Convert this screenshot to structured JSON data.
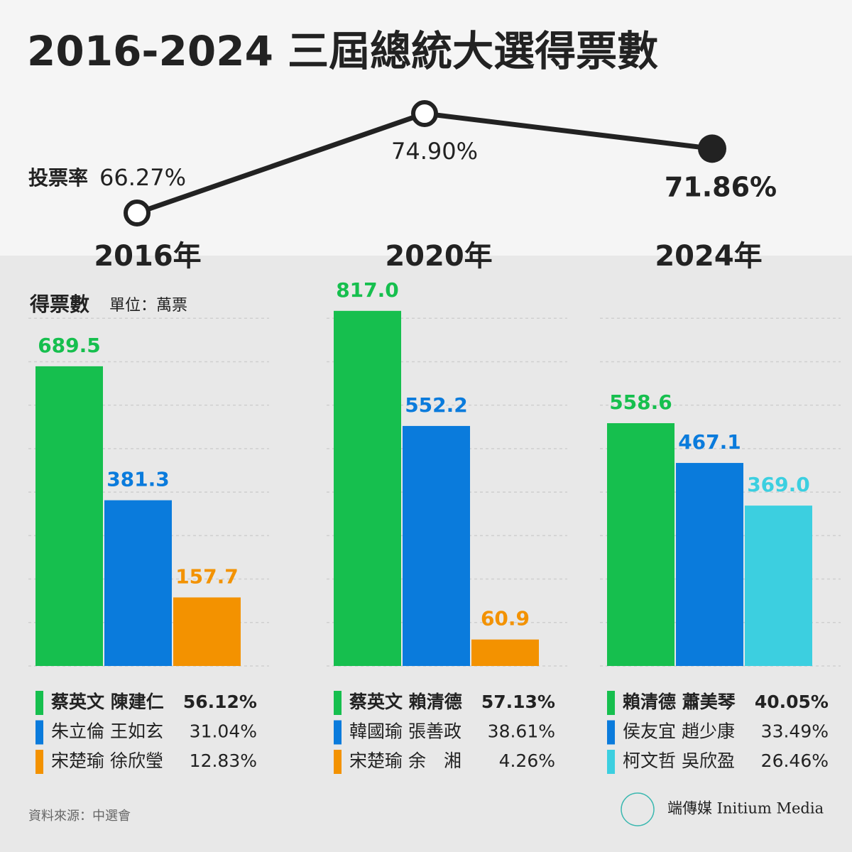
{
  "title": "2016-2024 三屆總統大選得票數",
  "source": "資料來源：中選會",
  "brand": "端傳媒 Initium Media",
  "chart_data": [
    {
      "type": "line",
      "label": "投票率",
      "categories": [
        "2016年",
        "2020年",
        "2024年"
      ],
      "values": [
        66.27,
        74.9,
        71.86
      ],
      "value_labels": [
        "66.27%",
        "74.90%",
        "71.86%"
      ],
      "color": "#222222"
    },
    {
      "type": "bar",
      "title": "得票數",
      "subtitle": "單位：萬票",
      "categories": [
        "蔡英文 陳建仁",
        "朱立倫 王如玄",
        "宋楚瑜 徐欣瑩"
      ],
      "values": [
        689.5,
        381.3,
        157.7
      ],
      "value_labels": [
        "689.5",
        "381.3",
        "157.7"
      ],
      "shares": [
        "56.12%",
        "31.04%",
        "12.83%"
      ],
      "colors": [
        "#16bf4e",
        "#0a7bdc",
        "#f39200"
      ],
      "ylim": [
        0,
        820
      ],
      "yticks": [
        0,
        100,
        200,
        300,
        400,
        500,
        600,
        700,
        800
      ],
      "grid": true
    },
    {
      "type": "bar",
      "categories": [
        "蔡英文 賴清德",
        "韓國瑜 張善政",
        "宋楚瑜 余　湘"
      ],
      "values": [
        817.0,
        552.2,
        60.9
      ],
      "value_labels": [
        "817.0",
        "552.2",
        "60.9"
      ],
      "shares": [
        "57.13%",
        "38.61%",
        "4.26%"
      ],
      "colors": [
        "#16bf4e",
        "#0a7bdc",
        "#f39200"
      ],
      "ylim": [
        0,
        820
      ],
      "yticks": [
        0,
        100,
        200,
        300,
        400,
        500,
        600,
        700,
        800
      ],
      "grid": true
    },
    {
      "type": "bar",
      "categories": [
        "賴清德 蕭美琴",
        "侯友宜 趙少康",
        "柯文哲 吳欣盈"
      ],
      "values": [
        558.6,
        467.1,
        369.0
      ],
      "value_labels": [
        "558.6",
        "467.1",
        "369.0"
      ],
      "shares": [
        "40.05%",
        "33.49%",
        "26.46%"
      ],
      "colors": [
        "#16bf4e",
        "#0a7bdc",
        "#3ccfe0"
      ],
      "ylim": [
        0,
        820
      ],
      "yticks": [
        0,
        100,
        200,
        300,
        400,
        500,
        600,
        700,
        800
      ],
      "grid": true
    }
  ]
}
